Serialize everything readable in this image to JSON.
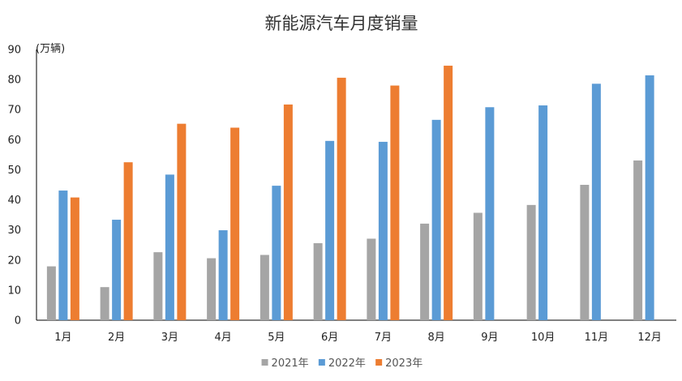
{
  "chart_data": {
    "type": "bar",
    "title": "新能源汽车月度销量",
    "unit_label": "(万辆)",
    "xlabel": "",
    "ylabel": "",
    "ylim": [
      0,
      90
    ],
    "y_ticks": [
      0,
      10,
      20,
      30,
      40,
      50,
      60,
      70,
      80,
      90
    ],
    "categories": [
      "1月",
      "2月",
      "3月",
      "4月",
      "5月",
      "6月",
      "7月",
      "8月",
      "9月",
      "10月",
      "11月",
      "12月"
    ],
    "series": [
      {
        "name": "2021年",
        "color": "#a5a5a5",
        "values": [
          17.9,
          11.0,
          22.6,
          20.6,
          21.7,
          25.6,
          27.1,
          32.1,
          35.7,
          38.3,
          45.0,
          53.1
        ]
      },
      {
        "name": "2022年",
        "color": "#5b9bd5",
        "values": [
          43.1,
          33.4,
          48.4,
          29.9,
          44.7,
          59.6,
          59.3,
          66.6,
          70.8,
          71.4,
          78.6,
          81.4
        ]
      },
      {
        "name": "2023年",
        "color": "#ed7d31",
        "values": [
          40.8,
          52.5,
          65.3,
          64.0,
          71.7,
          80.6,
          78.0,
          84.6,
          null,
          null,
          null,
          null
        ]
      }
    ],
    "grid": false,
    "legend_position": "bottom"
  }
}
